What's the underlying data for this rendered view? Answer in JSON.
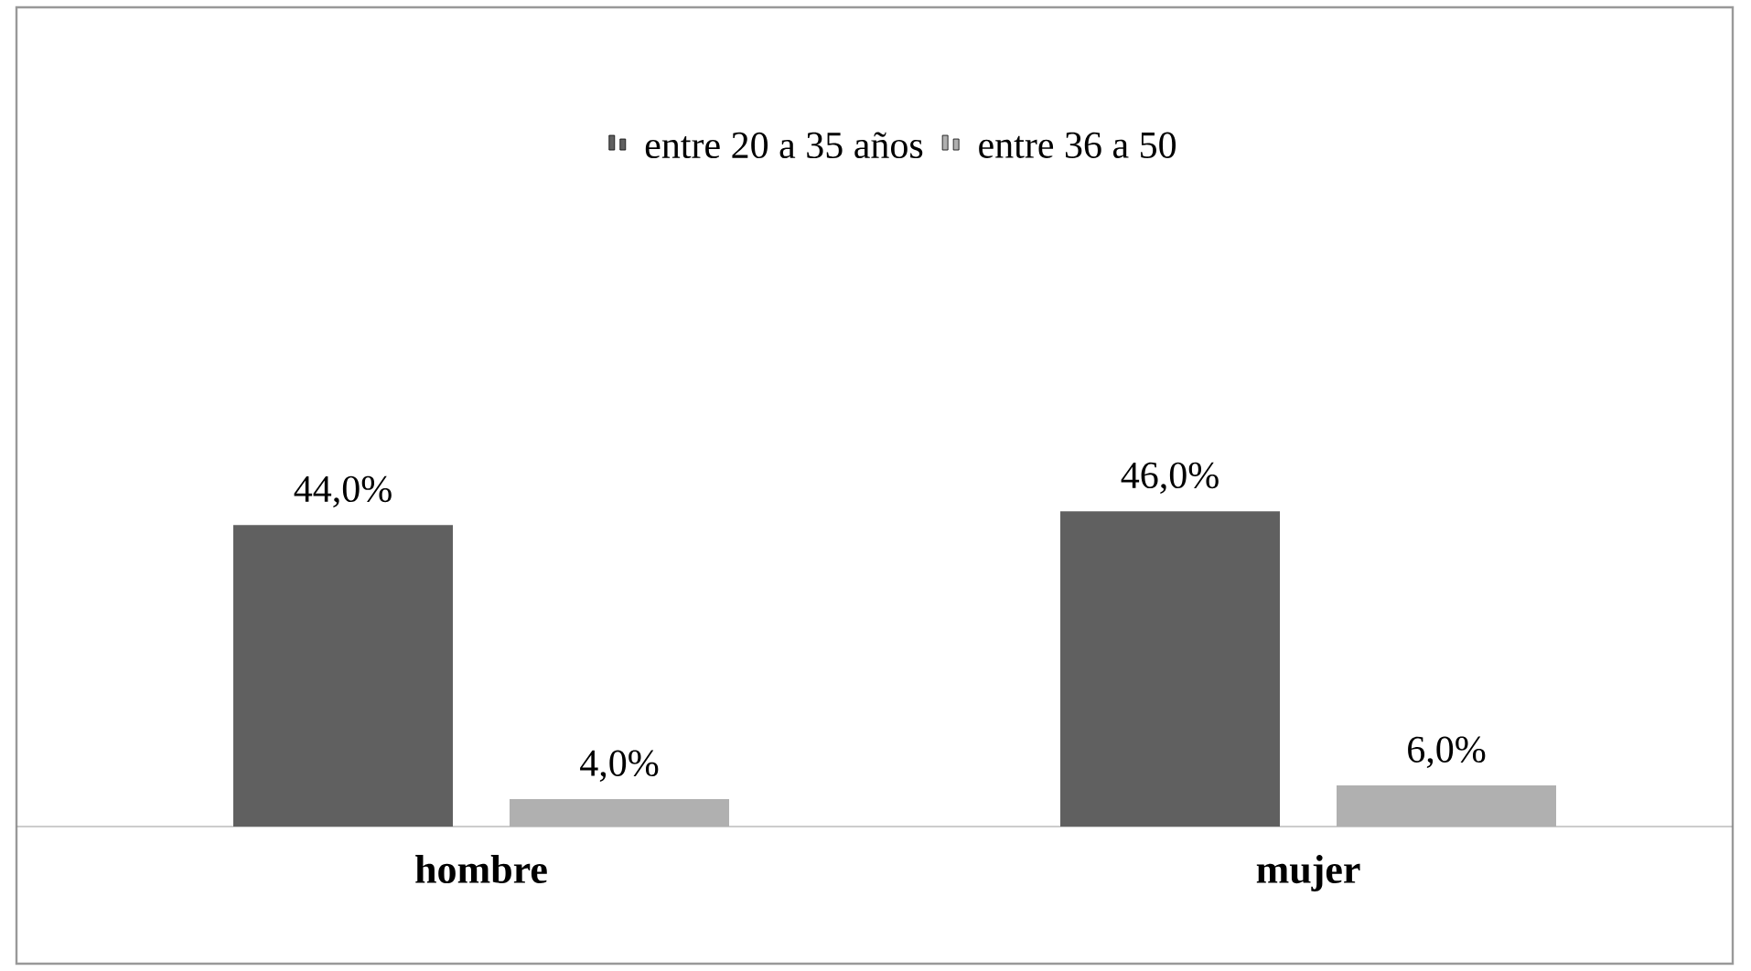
{
  "chart_data": {
    "type": "bar",
    "categories": [
      "hombre",
      "mujer"
    ],
    "series": [
      {
        "name": "entre 20 a 35 años",
        "color": "#606060",
        "values": [
          44.0,
          46.0
        ],
        "value_labels": [
          "44,0%",
          "46,0%"
        ]
      },
      {
        "name": "entre 36 a 50",
        "color": "#b0b0b0",
        "values": [
          4.0,
          6.0
        ],
        "value_labels": [
          "4,0%",
          "6,0%"
        ]
      }
    ],
    "legend": "top",
    "grid": false
  }
}
